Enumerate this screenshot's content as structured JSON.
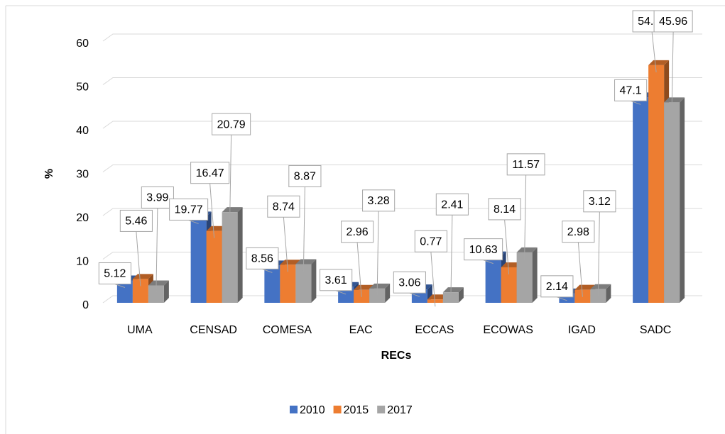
{
  "chart_data": {
    "type": "bar3d",
    "categories": [
      "UMA",
      "CENSAD",
      "COMESA",
      "EAC",
      "ECCAS",
      "ECOWAS",
      "IGAD",
      "SADC"
    ],
    "series": [
      {
        "name": "2010",
        "color": "#4472c4",
        "values": [
          5.12,
          19.77,
          8.56,
          3.61,
          3.06,
          10.63,
          2.14,
          47.1
        ]
      },
      {
        "name": "2015",
        "color": "#ed7d31",
        "values": [
          5.46,
          16.47,
          8.74,
          2.96,
          0.77,
          8.14,
          2.98,
          54.49
        ]
      },
      {
        "name": "2017",
        "color": "#a5a5a5",
        "values": [
          3.99,
          20.79,
          8.87,
          3.28,
          2.41,
          11.57,
          3.12,
          45.96
        ]
      }
    ],
    "y_label": "%",
    "x_label": "RECs",
    "ylim": [
      0,
      60
    ],
    "yticks": [
      0,
      10,
      20,
      30,
      40,
      50,
      60
    ],
    "grid": true,
    "legend": "bottom"
  }
}
